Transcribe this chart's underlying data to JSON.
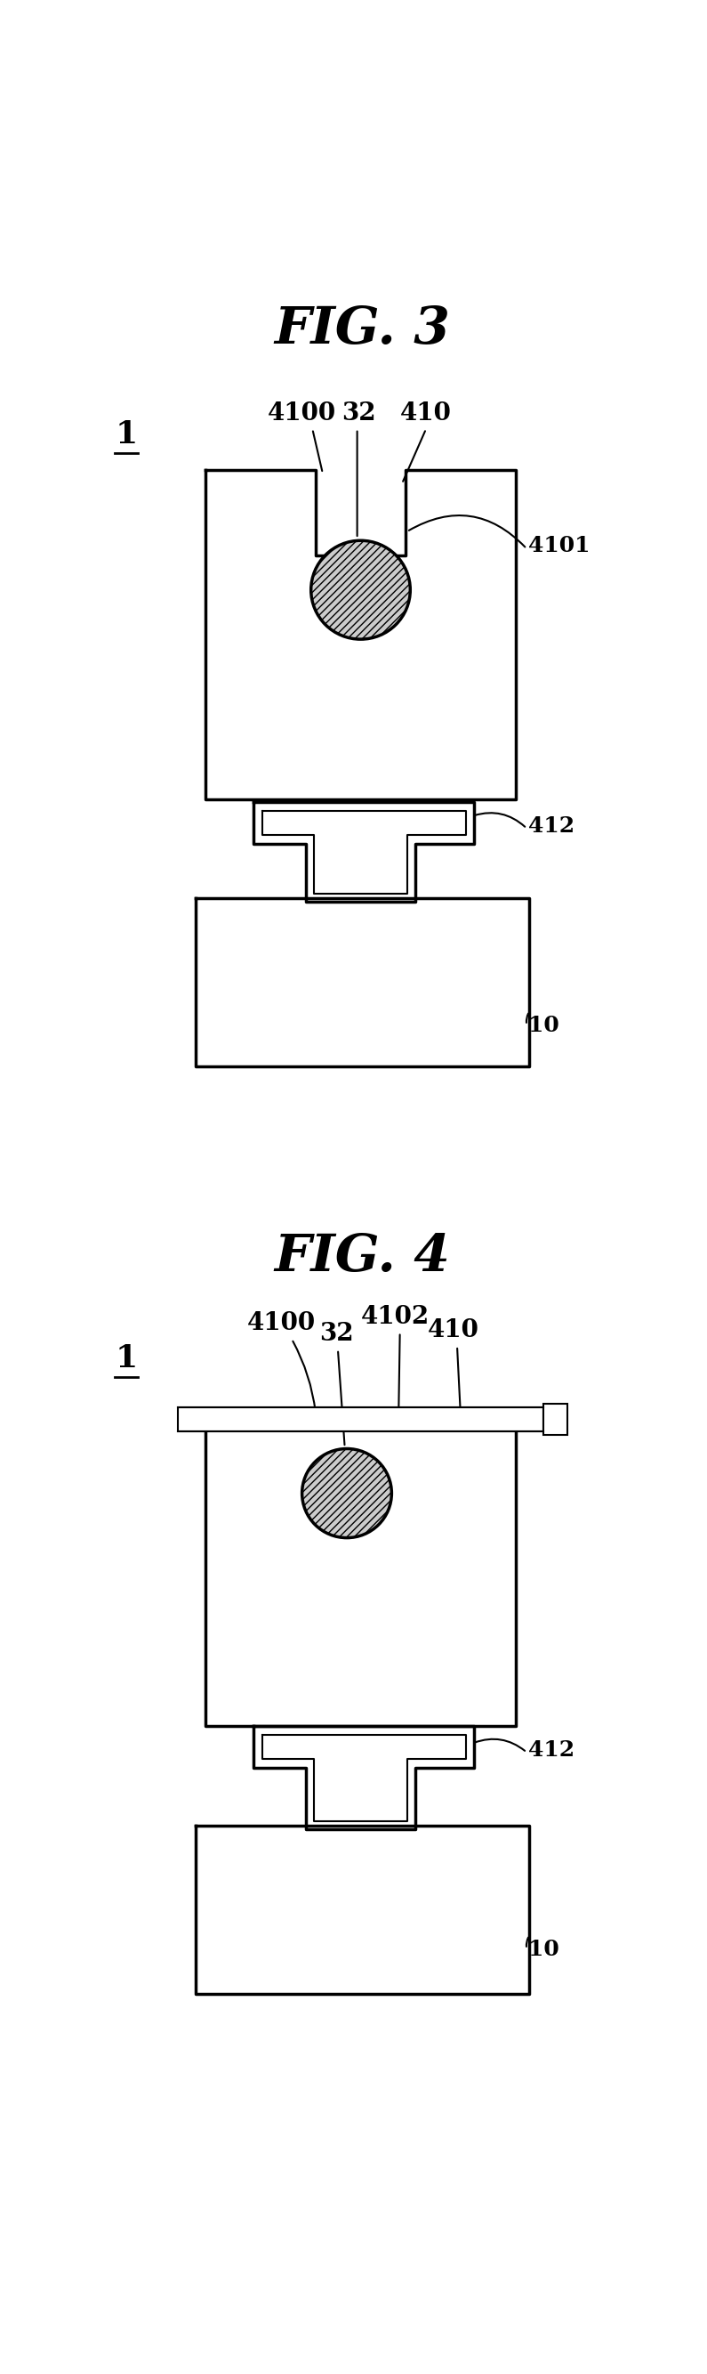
{
  "fig_width": 7.95,
  "fig_height": 26.67,
  "bg_color": "#ffffff",
  "line_color": "#000000",
  "lw": 2.5,
  "fig3": {
    "title": "FIG. 3",
    "fig4_title": "FIG. 4"
  }
}
